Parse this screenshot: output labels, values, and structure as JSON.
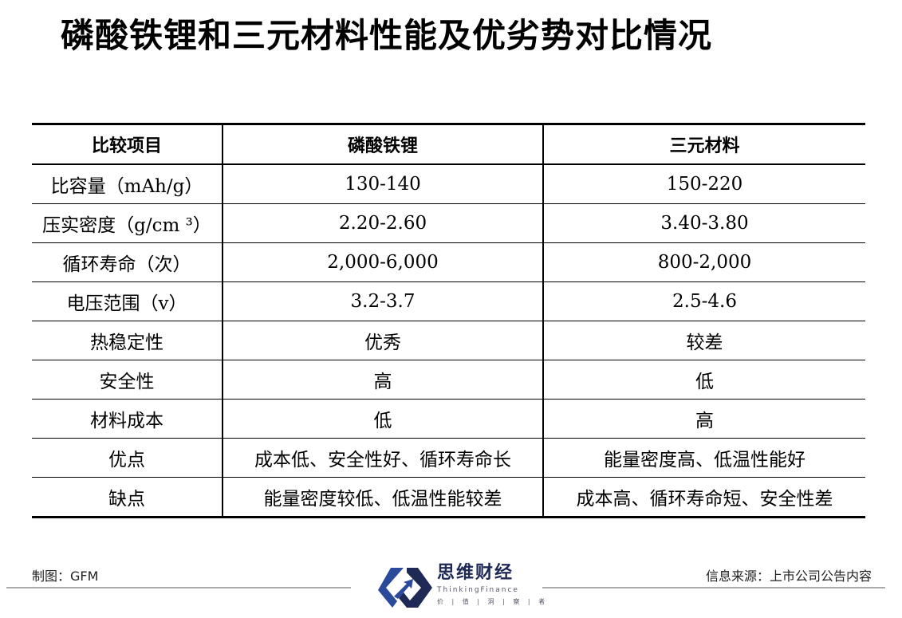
{
  "title": "磷酸铁锂和三元材料性能及优劣势对比情况",
  "table": {
    "headers": [
      "比较项目",
      "磷酸铁锂",
      "三元材料"
    ],
    "rows": [
      [
        "比容量（mAh/g）",
        "130-140",
        "150-220"
      ],
      [
        "压实密度（g/cm ³）",
        "2.20-2.60",
        "3.40-3.80"
      ],
      [
        "循环寿命（次）",
        "2,000-6,000",
        "800-2,000"
      ],
      [
        "电压范围（v）",
        "3.2-3.7",
        "2.5-4.6"
      ],
      [
        "热稳定性",
        "优秀",
        "较差"
      ],
      [
        "安全性",
        "高",
        "低"
      ],
      [
        "材料成本",
        "低",
        "高"
      ],
      [
        "优点",
        "成本低、安全性好、循环寿命长",
        "能量密度高、低温性能好"
      ],
      [
        "缺点",
        "能量密度较低、低温性能较差",
        "成本高、循环寿命短、安全性差"
      ]
    ]
  },
  "footer": {
    "left": "制图：GFM",
    "right": "信息来源：上市公司公告内容",
    "logo": {
      "name": "思维财经",
      "english": "ThinkingFinance",
      "tagline": "价 | 值 | 洞 | 察 | 者"
    }
  },
  "colors": {
    "logo_blue": "#2b4a9c",
    "logo_navy": "#1e2a55"
  }
}
